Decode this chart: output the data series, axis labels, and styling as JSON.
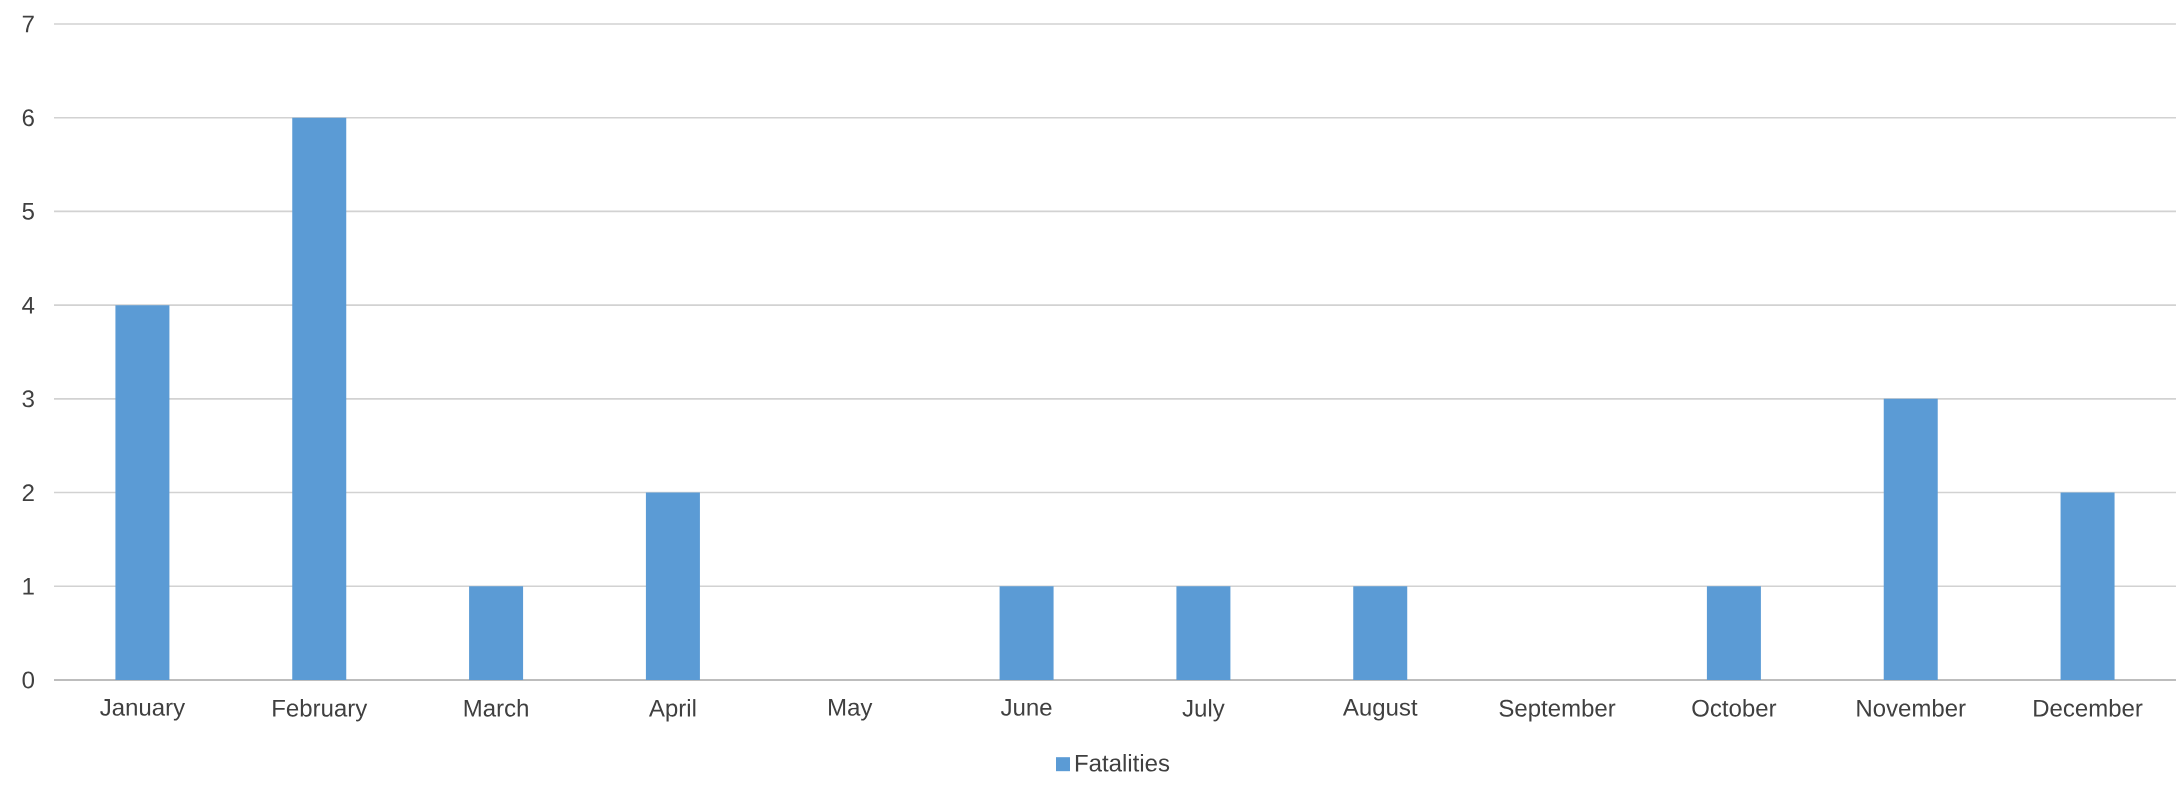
{
  "chart_data": {
    "type": "bar",
    "categories": [
      "January",
      "February",
      "March",
      "April",
      "May",
      "June",
      "July",
      "August",
      "September",
      "October",
      "November",
      "December"
    ],
    "series": [
      {
        "name": "Fatalities",
        "color": "#5b9bd5",
        "values": [
          4,
          6,
          1,
          2,
          0,
          1,
          1,
          1,
          0,
          1,
          3,
          2
        ]
      }
    ],
    "ylim": [
      0,
      7
    ],
    "yticks": [
      0,
      1,
      2,
      3,
      4,
      5,
      6,
      7
    ],
    "grid": "y",
    "legend": "bottom"
  }
}
